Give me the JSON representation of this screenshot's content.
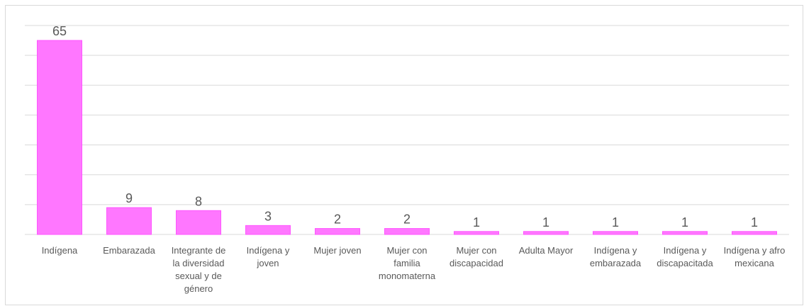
{
  "chart_data": {
    "type": "bar",
    "categories": [
      "Indígena",
      "Embarazada",
      "Integrante de la diversidad sexual y de género",
      "Indígena y joven",
      "Mujer joven",
      "Mujer con familia monomaterna",
      "Mujer con discapacidad",
      "Adulta Mayor",
      "Indígena y embarazada",
      "Indígena y discapacitada",
      "Indígena y afro mexicana"
    ],
    "category_lines": [
      [
        "Indígena"
      ],
      [
        "Embarazada"
      ],
      [
        "Integrante de",
        "la diversidad",
        "sexual y de",
        "género"
      ],
      [
        "Indígena y",
        "joven"
      ],
      [
        "Mujer joven"
      ],
      [
        "Mujer con",
        "familia",
        "monomaterna"
      ],
      [
        "Mujer con",
        "discapacidad"
      ],
      [
        "Adulta Mayor"
      ],
      [
        "Indígena y",
        "embarazada"
      ],
      [
        "Indígena y",
        "discapacitada"
      ],
      [
        "Indígena y afro",
        "mexicana"
      ]
    ],
    "values": [
      65,
      9,
      8,
      3,
      2,
      2,
      1,
      1,
      1,
      1,
      1
    ],
    "title": "",
    "xlabel": "",
    "ylabel": "",
    "ylim": [
      0,
      70
    ],
    "ytick_step": 10,
    "grid": true,
    "legend": false,
    "data_labels": true,
    "bar_color": "#ff77ff",
    "bar_edge_color": "#ff55ff",
    "grid_color": "#d9d9d9",
    "label_color": "#595959"
  }
}
